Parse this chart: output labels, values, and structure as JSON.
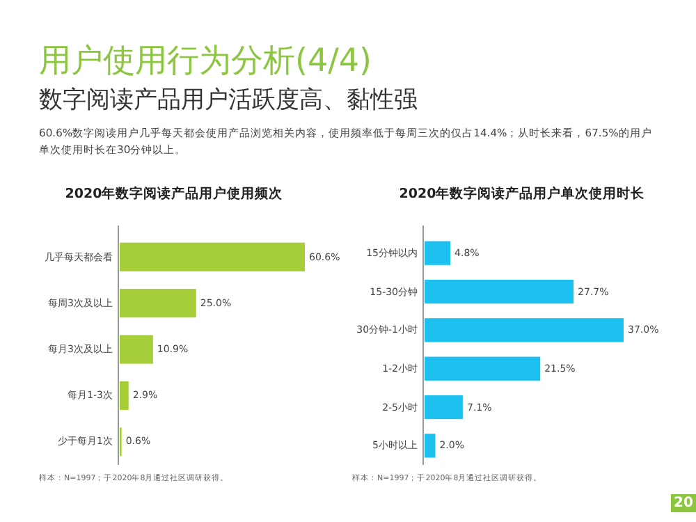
{
  "chart_data": [
    {
      "type": "other",
      "title": "用户使用行为分析(4/4)",
      "subtitle": "数字阅读产品用户活跃度高、黏性强",
      "annotations": [
        "60.6%数字阅读用户几乎每天都会使用产品浏览相关内容，使用频率低于每周三次的仅占14.4%；从时长来看，67.5%的用户单次使用时长在30分钟以上。"
      ]
    },
    {
      "type": "bar",
      "orientation": "horizontal",
      "title": "2020年数字阅读产品用户使用频次",
      "categories": [
        "几乎每天都会看",
        "每周3次及以上",
        "每月3次及以上",
        "每月1-3次",
        "少于每月1次"
      ],
      "values": [
        60.6,
        25.0,
        10.9,
        2.9,
        0.6
      ],
      "value_labels": [
        "60.6%",
        "25.0%",
        "10.9%",
        "2.9%",
        "0.6%"
      ],
      "color": "#a6ce39",
      "annotations": [
        "样本：N=1997；于2020年8月通过社区调研获得。"
      ]
    },
    {
      "type": "bar",
      "orientation": "horizontal",
      "title": "2020年数字阅读产品用户单次使用时长",
      "categories": [
        "15分钟以内",
        "15-30分钟",
        "30分钟-1小时",
        "1-2小时",
        "2-5小时",
        "5小时以上"
      ],
      "values": [
        4.8,
        27.7,
        37.0,
        21.5,
        7.1,
        2.0
      ],
      "value_labels": [
        "4.8%",
        "27.7%",
        "37.0%",
        "21.5%",
        "7.1%",
        "2.0%"
      ],
      "color": "#1ec0ef",
      "annotations": [
        "样本：N=1997；于2020年8月通过社区调研获得。",
        "20"
      ]
    }
  ]
}
